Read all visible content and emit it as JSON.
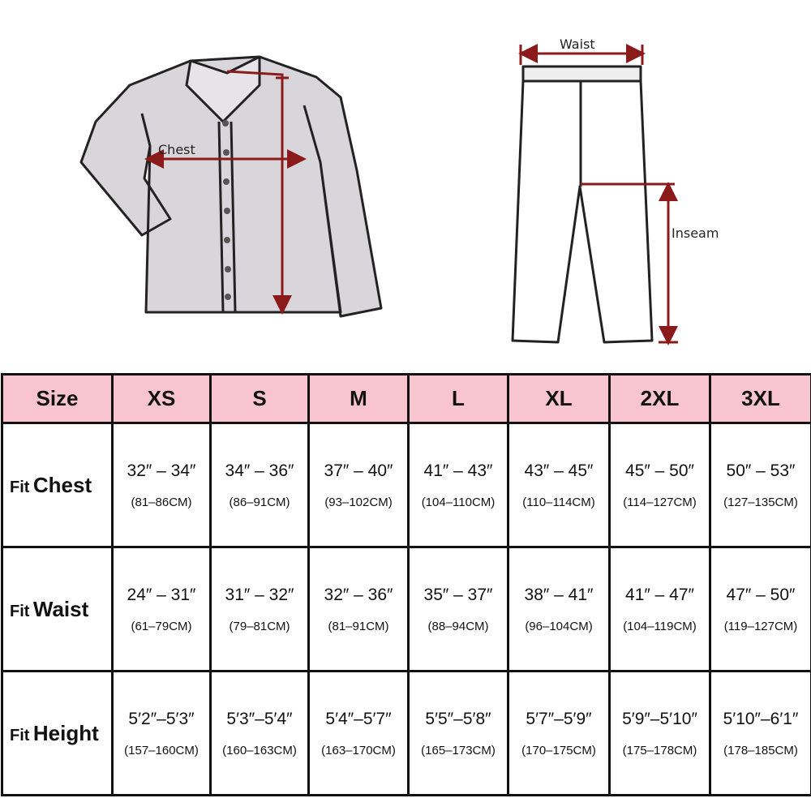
{
  "diagram": {
    "shirt_labels": {
      "chest": "Chest"
    },
    "pants_labels": {
      "waist": "Waist",
      "inseam": "Inseam"
    },
    "arrow_color": "#8b1a1a",
    "header_color": "#f7c4cf"
  },
  "table": {
    "header": [
      "Size",
      "XS",
      "S",
      "M",
      "L",
      "XL",
      "2XL",
      "3XL"
    ],
    "rows": [
      {
        "prefix": "Fit",
        "name": "Chest",
        "inches": [
          "32″ – 34″",
          "34″ – 36″",
          "37″ – 40″",
          "41″ – 43″",
          "43″ – 45″",
          "45″ – 50″",
          "50″ – 53″"
        ],
        "cm": [
          "(81–86CM)",
          "(86–91CM)",
          "(93–102CM)",
          "(104–110CM)",
          "(110–114CM)",
          "(114–127CM)",
          "(127–135CM)"
        ]
      },
      {
        "prefix": "Fit",
        "name": "Waist",
        "inches": [
          "24″ – 31″",
          "31″ – 32″",
          "32″ – 36″",
          "35″ – 37″",
          "38″ – 41″",
          "41″ – 47″",
          "47″ – 50″"
        ],
        "cm": [
          "(61–79CM)",
          "(79–81CM)",
          "(81–91CM)",
          "(88–94CM)",
          "(96–104CM)",
          "(104–119CM)",
          "(119–127CM)"
        ]
      },
      {
        "prefix": "Fit",
        "name": "Height",
        "inches": [
          "5′2″–5′3″",
          "5′3″–5′4″",
          "5′4″–5′7″",
          "5′5″–5′8″",
          "5′7″–5′9″",
          "5′9″–5′10″",
          "5′10″–6′1″"
        ],
        "cm": [
          "(157–160CM)",
          "(160–163CM)",
          "(163–170CM)",
          "(165–173CM)",
          "(170–175CM)",
          "(175–178CM)",
          "(178–185CM)"
        ]
      }
    ]
  }
}
